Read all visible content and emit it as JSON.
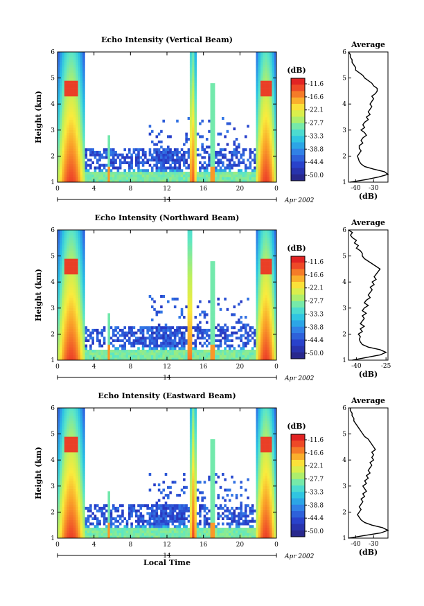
{
  "figure": {
    "date_label": "Apr 2002",
    "x_axis_label": "Local Time",
    "day_label": "14"
  },
  "chart_data": [
    {
      "type": "heatmap",
      "title": "Echo Intensity (Vertical Beam)",
      "xlabel": "",
      "ylabel": "Height (km)",
      "x_ticks": [
        "0",
        "4",
        "8",
        "12",
        "16",
        "20",
        "0"
      ],
      "y_ticks": [
        "1",
        "2",
        "3",
        "4",
        "5",
        "6"
      ],
      "xlim": [
        0,
        24
      ],
      "ylim": [
        1,
        6
      ],
      "colorbar": {
        "unit": "(dB)",
        "ticks": [
          "-11.6",
          "-16.6",
          "-22.1",
          "-27.7",
          "-33.3",
          "-38.8",
          "-44.4",
          "-50.0"
        ]
      },
      "features": {
        "layer_base_km": 1.3,
        "precip_bands": [
          {
            "t_start": 0.0,
            "t_end": 3.0
          },
          {
            "t_start": 21.7,
            "t_end": 24.0
          }
        ],
        "spikes_hr": [
          5.6,
          14.8,
          16.9,
          17.1
        ]
      },
      "profile": {
        "title": "Average",
        "xlabel": "(dB)",
        "x_ticks": [
          "-40",
          "-30"
        ],
        "xlim": [
          -44,
          -22
        ],
        "y_ticks": [
          "1",
          "2",
          "3",
          "4",
          "5",
          "6"
        ],
        "heights": [
          1.0,
          1.1,
          1.2,
          1.3,
          1.4,
          1.5,
          1.6,
          1.7,
          1.8,
          1.9,
          2.0,
          2.1,
          2.2,
          2.3,
          2.4,
          2.5,
          2.6,
          2.7,
          2.8,
          2.9,
          3.0,
          3.1,
          3.2,
          3.3,
          3.4,
          3.5,
          3.6,
          3.7,
          3.8,
          3.9,
          4.0,
          4.1,
          4.2,
          4.3,
          4.4,
          4.5,
          4.6,
          4.7,
          4.8,
          4.9,
          5.0,
          5.1,
          5.2,
          5.3,
          5.4,
          5.5,
          5.6,
          5.7,
          5.8,
          5.9,
          6.0
        ],
        "values": [
          -43,
          -34,
          -27,
          -22,
          -24,
          -30,
          -35,
          -37,
          -38,
          -38.5,
          -39,
          -38,
          -37,
          -38,
          -38,
          -36,
          -37,
          -36,
          -34,
          -35,
          -37,
          -35,
          -36,
          -35,
          -33,
          -34,
          -32,
          -33,
          -32,
          -31,
          -32,
          -31,
          -30,
          -31,
          -29,
          -28,
          -28,
          -30,
          -31,
          -33,
          -35,
          -36,
          -38,
          -40,
          -40,
          -41,
          -42,
          -42,
          -43,
          -43,
          -44
        ]
      }
    },
    {
      "type": "heatmap",
      "title": "Echo Intensity (Northward Beam)",
      "xlabel": "",
      "ylabel": "Height (km)",
      "x_ticks": [
        "0",
        "4",
        "8",
        "12",
        "16",
        "20",
        "0"
      ],
      "y_ticks": [
        "1",
        "2",
        "3",
        "4",
        "5",
        "6"
      ],
      "xlim": [
        0,
        24
      ],
      "ylim": [
        1,
        6
      ],
      "colorbar": {
        "unit": "(dB)",
        "ticks": [
          "-11.6",
          "-16.6",
          "-22.1",
          "-27.7",
          "-33.3",
          "-38.8",
          "-44.4",
          "-50.0"
        ]
      },
      "features": {
        "layer_base_km": 1.3,
        "precip_bands": [
          {
            "t_start": 0.0,
            "t_end": 3.0
          },
          {
            "t_start": 21.7,
            "t_end": 24.0
          }
        ],
        "spikes_hr": [
          5.6,
          14.5,
          16.9,
          17.1
        ]
      },
      "profile": {
        "title": "Average",
        "xlabel": "(dB)",
        "x_ticks": [
          "-40",
          "-25"
        ],
        "xlim": [
          -44,
          -24
        ],
        "y_ticks": [
          "1",
          "2",
          "3",
          "4",
          "5",
          "6"
        ],
        "heights": [
          1.0,
          1.1,
          1.2,
          1.3,
          1.4,
          1.5,
          1.6,
          1.7,
          1.8,
          1.9,
          2.0,
          2.1,
          2.2,
          2.3,
          2.4,
          2.5,
          2.6,
          2.7,
          2.8,
          2.9,
          3.0,
          3.1,
          3.2,
          3.3,
          3.4,
          3.5,
          3.6,
          3.7,
          3.8,
          3.9,
          4.0,
          4.1,
          4.2,
          4.3,
          4.4,
          4.5,
          4.6,
          4.7,
          4.8,
          4.9,
          5.0,
          5.1,
          5.2,
          5.3,
          5.4,
          5.5,
          5.6,
          5.7,
          5.8,
          5.9,
          6.0
        ],
        "values": [
          -42,
          -35,
          -28,
          -25,
          -28,
          -34,
          -37,
          -38,
          -38.5,
          -38,
          -39,
          -37,
          -38,
          -36,
          -38,
          -37,
          -36,
          -37,
          -35,
          -37,
          -36,
          -34,
          -36,
          -35,
          -33,
          -34,
          -33,
          -32,
          -33,
          -31,
          -32,
          -30,
          -31,
          -30,
          -29,
          -28,
          -30,
          -32,
          -34,
          -36,
          -37,
          -37,
          -38,
          -40,
          -39,
          -41,
          -40,
          -42,
          -43,
          -42,
          -44
        ]
      }
    },
    {
      "type": "heatmap",
      "title": "Echo Intensity (Eastward Beam)",
      "xlabel": "Local Time",
      "ylabel": "Height (km)",
      "x_ticks": [
        "0",
        "4",
        "8",
        "12",
        "16",
        "20",
        "0"
      ],
      "y_ticks": [
        "1",
        "2",
        "3",
        "4",
        "5",
        "6"
      ],
      "xlim": [
        0,
        24
      ],
      "ylim": [
        1,
        6
      ],
      "colorbar": {
        "unit": "(dB)",
        "ticks": [
          "-11.6",
          "-16.6",
          "-22.1",
          "-27.7",
          "-33.3",
          "-38.8",
          "-44.4",
          "-50.0"
        ]
      },
      "features": {
        "layer_base_km": 1.3,
        "precip_bands": [
          {
            "t_start": 0.0,
            "t_end": 3.0
          },
          {
            "t_start": 21.7,
            "t_end": 24.0
          }
        ],
        "spikes_hr": [
          5.6,
          14.9,
          16.9,
          17.1
        ]
      },
      "profile": {
        "title": "Average",
        "xlabel": "(dB)",
        "x_ticks": [
          "-40",
          "-30"
        ],
        "xlim": [
          -44,
          -22
        ],
        "y_ticks": [
          "1",
          "2",
          "3",
          "4",
          "5",
          "6"
        ],
        "heights": [
          1.0,
          1.1,
          1.2,
          1.3,
          1.4,
          1.5,
          1.6,
          1.7,
          1.8,
          1.9,
          2.0,
          2.1,
          2.2,
          2.3,
          2.4,
          2.5,
          2.6,
          2.7,
          2.8,
          2.9,
          3.0,
          3.1,
          3.2,
          3.3,
          3.4,
          3.5,
          3.6,
          3.7,
          3.8,
          3.9,
          4.0,
          4.1,
          4.2,
          4.3,
          4.4,
          4.5,
          4.6,
          4.7,
          4.8,
          4.9,
          5.0,
          5.1,
          5.2,
          5.3,
          5.4,
          5.5,
          5.6,
          5.7,
          5.8,
          5.9,
          6.0
        ],
        "values": [
          -44,
          -35,
          -26,
          -22,
          -25,
          -31,
          -35,
          -37,
          -38,
          -39,
          -38,
          -37,
          -38,
          -37,
          -36,
          -37,
          -35,
          -36,
          -34,
          -35,
          -36,
          -34,
          -35,
          -33,
          -34,
          -32,
          -33,
          -32,
          -31,
          -32,
          -30,
          -31,
          -30,
          -31,
          -29,
          -30,
          -31,
          -32,
          -33,
          -35,
          -36,
          -37,
          -38,
          -39,
          -40,
          -41,
          -41,
          -42,
          -42,
          -43,
          -43
        ]
      }
    }
  ]
}
